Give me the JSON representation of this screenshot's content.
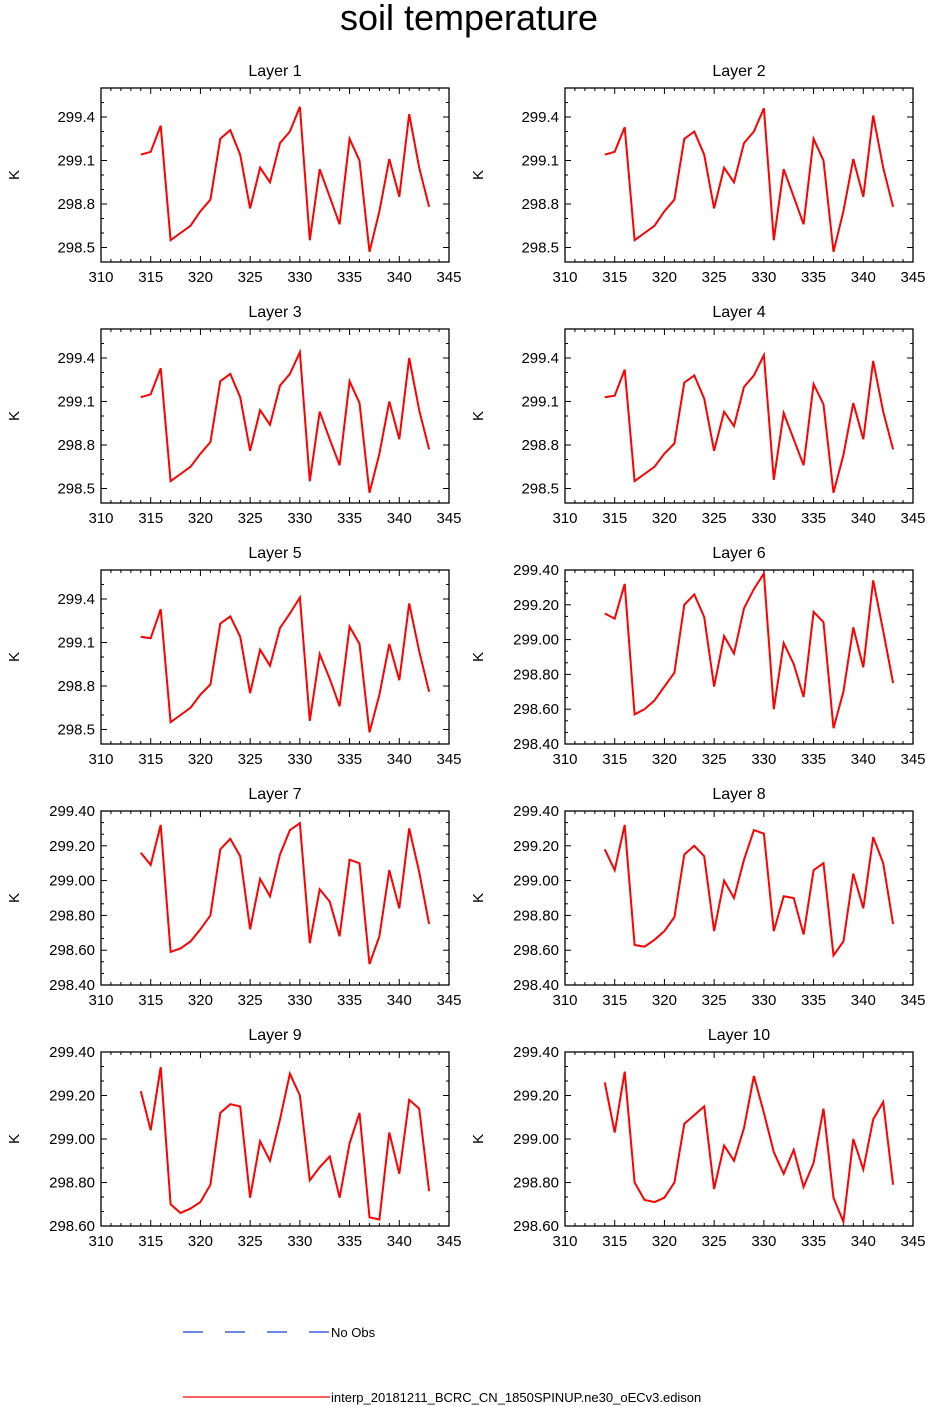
{
  "figure": {
    "title": "soil temperature"
  },
  "legend": {
    "entries": [
      {
        "label": "No Obs",
        "color": "#1a3fd6",
        "style": "dashed"
      },
      {
        "label": "interp_20181211_BCRC_CN_1850SPINUP.ne30_oECv3.edison",
        "color": "#ff0000",
        "style": "solid"
      }
    ]
  },
  "colors": {
    "series": "#ff0000",
    "axis": "#000000",
    "obs": "#1a3fd6"
  },
  "chart_data": [
    {
      "type": "line",
      "title": "Layer 1",
      "xlabel": "",
      "ylabel": "K",
      "xlim": [
        310,
        345
      ],
      "ylim": [
        298.4,
        299.6
      ],
      "xticks": [
        310,
        315,
        320,
        325,
        330,
        335,
        340,
        345
      ],
      "yticks": [
        298.5,
        298.8,
        299.1,
        299.4
      ],
      "ytick_labels": [
        "298.5",
        "298.8",
        "299.1",
        "299.4"
      ],
      "x": [
        314,
        315,
        316,
        317,
        318,
        319,
        320,
        321,
        322,
        323,
        324,
        325,
        326,
        327,
        328,
        329,
        330,
        331,
        332,
        333,
        334,
        335,
        336,
        337,
        338,
        339,
        340,
        341,
        342,
        343
      ],
      "series": [
        {
          "name": "interp_20181211_BCRC_CN_1850SPINUP.ne30_oECv3.edison",
          "values": [
            299.14,
            299.16,
            299.34,
            298.55,
            298.6,
            298.65,
            298.75,
            298.83,
            299.25,
            299.31,
            299.14,
            298.77,
            299.05,
            298.95,
            299.22,
            299.3,
            299.47,
            298.55,
            299.04,
            298.85,
            298.66,
            299.25,
            299.1,
            298.47,
            298.75,
            299.11,
            298.85,
            299.42,
            299.05,
            298.78
          ]
        }
      ]
    },
    {
      "type": "line",
      "title": "Layer 2",
      "xlabel": "",
      "ylabel": "K",
      "xlim": [
        310,
        345
      ],
      "ylim": [
        298.4,
        299.6
      ],
      "xticks": [
        310,
        315,
        320,
        325,
        330,
        335,
        340,
        345
      ],
      "yticks": [
        298.5,
        298.8,
        299.1,
        299.4
      ],
      "ytick_labels": [
        "298.5",
        "298.8",
        "299.1",
        "299.4"
      ],
      "x": [
        314,
        315,
        316,
        317,
        318,
        319,
        320,
        321,
        322,
        323,
        324,
        325,
        326,
        327,
        328,
        329,
        330,
        331,
        332,
        333,
        334,
        335,
        336,
        337,
        338,
        339,
        340,
        341,
        342,
        343
      ],
      "series": [
        {
          "name": "interp_20181211_BCRC_CN_1850SPINUP.ne30_oECv3.edison",
          "values": [
            299.14,
            299.16,
            299.33,
            298.55,
            298.6,
            298.65,
            298.75,
            298.83,
            299.25,
            299.3,
            299.14,
            298.77,
            299.05,
            298.95,
            299.22,
            299.3,
            299.46,
            298.55,
            299.04,
            298.85,
            298.66,
            299.25,
            299.1,
            298.47,
            298.75,
            299.11,
            298.85,
            299.41,
            299.05,
            298.78
          ]
        }
      ]
    },
    {
      "type": "line",
      "title": "Layer 3",
      "xlabel": "",
      "ylabel": "K",
      "xlim": [
        310,
        345
      ],
      "ylim": [
        298.4,
        299.6
      ],
      "xticks": [
        310,
        315,
        320,
        325,
        330,
        335,
        340,
        345
      ],
      "yticks": [
        298.5,
        298.8,
        299.1,
        299.4
      ],
      "ytick_labels": [
        "298.5",
        "298.8",
        "299.1",
        "299.4"
      ],
      "x": [
        314,
        315,
        316,
        317,
        318,
        319,
        320,
        321,
        322,
        323,
        324,
        325,
        326,
        327,
        328,
        329,
        330,
        331,
        332,
        333,
        334,
        335,
        336,
        337,
        338,
        339,
        340,
        341,
        342,
        343
      ],
      "series": [
        {
          "name": "interp_20181211_BCRC_CN_1850SPINUP.ne30_oECv3.edison",
          "values": [
            299.13,
            299.15,
            299.33,
            298.55,
            298.6,
            298.65,
            298.74,
            298.82,
            299.24,
            299.29,
            299.13,
            298.76,
            299.04,
            298.94,
            299.21,
            299.29,
            299.44,
            298.55,
            299.03,
            298.84,
            298.66,
            299.24,
            299.09,
            298.47,
            298.74,
            299.1,
            298.84,
            299.4,
            299.04,
            298.77
          ]
        }
      ]
    },
    {
      "type": "line",
      "title": "Layer 4",
      "xlabel": "",
      "ylabel": "K",
      "xlim": [
        310,
        345
      ],
      "ylim": [
        298.4,
        299.6
      ],
      "xticks": [
        310,
        315,
        320,
        325,
        330,
        335,
        340,
        345
      ],
      "yticks": [
        298.5,
        298.8,
        299.1,
        299.4
      ],
      "ytick_labels": [
        "298.5",
        "298.8",
        "299.1",
        "299.4"
      ],
      "x": [
        314,
        315,
        316,
        317,
        318,
        319,
        320,
        321,
        322,
        323,
        324,
        325,
        326,
        327,
        328,
        329,
        330,
        331,
        332,
        333,
        334,
        335,
        336,
        337,
        338,
        339,
        340,
        341,
        342,
        343
      ],
      "series": [
        {
          "name": "interp_20181211_BCRC_CN_1850SPINUP.ne30_oECv3.edison",
          "values": [
            299.13,
            299.14,
            299.32,
            298.55,
            298.6,
            298.65,
            298.74,
            298.81,
            299.23,
            299.28,
            299.12,
            298.76,
            299.03,
            298.93,
            299.2,
            299.28,
            299.42,
            298.56,
            299.02,
            298.84,
            298.66,
            299.22,
            299.08,
            298.47,
            298.73,
            299.09,
            298.84,
            299.38,
            299.03,
            298.77
          ]
        }
      ]
    },
    {
      "type": "line",
      "title": "Layer 5",
      "xlabel": "",
      "ylabel": "K",
      "xlim": [
        310,
        345
      ],
      "ylim": [
        298.4,
        299.6
      ],
      "xticks": [
        310,
        315,
        320,
        325,
        330,
        335,
        340,
        345
      ],
      "yticks": [
        298.5,
        298.8,
        299.1,
        299.4
      ],
      "ytick_labels": [
        "298.5",
        "298.8",
        "299.1",
        "299.4"
      ],
      "x": [
        314,
        315,
        316,
        317,
        318,
        319,
        320,
        321,
        322,
        323,
        324,
        325,
        326,
        327,
        328,
        329,
        330,
        331,
        332,
        333,
        334,
        335,
        336,
        337,
        338,
        339,
        340,
        341,
        342,
        343
      ],
      "series": [
        {
          "name": "interp_20181211_BCRC_CN_1850SPINUP.ne30_oECv3.edison",
          "values": [
            299.14,
            299.13,
            299.33,
            298.55,
            298.6,
            298.65,
            298.74,
            298.81,
            299.23,
            299.28,
            299.14,
            298.75,
            299.05,
            298.94,
            299.2,
            299.3,
            299.41,
            298.56,
            299.02,
            298.85,
            298.66,
            299.21,
            299.09,
            298.48,
            298.74,
            299.09,
            298.84,
            299.37,
            299.04,
            298.76
          ]
        }
      ]
    },
    {
      "type": "line",
      "title": "Layer 6",
      "xlabel": "",
      "ylabel": "K",
      "xlim": [
        310,
        345
      ],
      "ylim": [
        298.4,
        299.4
      ],
      "xticks": [
        310,
        315,
        320,
        325,
        330,
        335,
        340,
        345
      ],
      "yticks": [
        298.4,
        298.6,
        298.8,
        299.0,
        299.2,
        299.4
      ],
      "ytick_labels": [
        "298.40",
        "298.60",
        "298.80",
        "299.00",
        "299.20",
        "299.40"
      ],
      "x": [
        314,
        315,
        316,
        317,
        318,
        319,
        320,
        321,
        322,
        323,
        324,
        325,
        326,
        327,
        328,
        329,
        330,
        331,
        332,
        333,
        334,
        335,
        336,
        337,
        338,
        339,
        340,
        341,
        342,
        343
      ],
      "series": [
        {
          "name": "interp_20181211_BCRC_CN_1850SPINUP.ne30_oECv3.edison",
          "values": [
            299.15,
            299.12,
            299.32,
            298.57,
            298.6,
            298.65,
            298.73,
            298.81,
            299.2,
            299.26,
            299.13,
            298.73,
            299.02,
            298.92,
            299.18,
            299.29,
            299.38,
            298.6,
            298.98,
            298.86,
            298.67,
            299.16,
            299.1,
            298.49,
            298.7,
            299.07,
            298.84,
            299.34,
            299.05,
            298.75
          ]
        }
      ]
    },
    {
      "type": "line",
      "title": "Layer 7",
      "xlabel": "",
      "ylabel": "K",
      "xlim": [
        310,
        345
      ],
      "ylim": [
        298.4,
        299.4
      ],
      "xticks": [
        310,
        315,
        320,
        325,
        330,
        335,
        340,
        345
      ],
      "yticks": [
        298.4,
        298.6,
        298.8,
        299.0,
        299.2,
        299.4
      ],
      "ytick_labels": [
        "298.40",
        "298.60",
        "298.80",
        "299.00",
        "299.20",
        "299.40"
      ],
      "x": [
        314,
        315,
        316,
        317,
        318,
        319,
        320,
        321,
        322,
        323,
        324,
        325,
        326,
        327,
        328,
        329,
        330,
        331,
        332,
        333,
        334,
        335,
        336,
        337,
        338,
        339,
        340,
        341,
        342,
        343
      ],
      "series": [
        {
          "name": "interp_20181211_BCRC_CN_1850SPINUP.ne30_oECv3.edison",
          "values": [
            299.16,
            299.09,
            299.32,
            298.59,
            298.61,
            298.65,
            298.72,
            298.8,
            299.18,
            299.24,
            299.14,
            298.72,
            299.01,
            298.91,
            299.15,
            299.29,
            299.33,
            298.64,
            298.95,
            298.88,
            298.68,
            299.12,
            299.1,
            298.52,
            298.68,
            299.06,
            298.84,
            299.3,
            299.05,
            298.75
          ]
        }
      ]
    },
    {
      "type": "line",
      "title": "Layer 8",
      "xlabel": "",
      "ylabel": "K",
      "xlim": [
        310,
        345
      ],
      "ylim": [
        298.4,
        299.4
      ],
      "xticks": [
        310,
        315,
        320,
        325,
        330,
        335,
        340,
        345
      ],
      "yticks": [
        298.4,
        298.6,
        298.8,
        299.0,
        299.2,
        299.4
      ],
      "ytick_labels": [
        "298.40",
        "298.60",
        "298.80",
        "299.00",
        "299.20",
        "299.40"
      ],
      "x": [
        314,
        315,
        316,
        317,
        318,
        319,
        320,
        321,
        322,
        323,
        324,
        325,
        326,
        327,
        328,
        329,
        330,
        331,
        332,
        333,
        334,
        335,
        336,
        337,
        338,
        339,
        340,
        341,
        342,
        343
      ],
      "series": [
        {
          "name": "interp_20181211_BCRC_CN_1850SPINUP.ne30_oECv3.edison",
          "values": [
            299.18,
            299.06,
            299.32,
            298.63,
            298.62,
            298.66,
            298.71,
            298.79,
            299.15,
            299.2,
            299.14,
            298.71,
            299.0,
            298.9,
            299.12,
            299.29,
            299.27,
            298.71,
            298.91,
            298.9,
            298.69,
            299.06,
            299.1,
            298.57,
            298.65,
            299.04,
            298.84,
            299.25,
            299.1,
            298.75
          ]
        }
      ]
    },
    {
      "type": "line",
      "title": "Layer 9",
      "xlabel": "",
      "ylabel": "K",
      "xlim": [
        310,
        345
      ],
      "ylim": [
        298.6,
        299.4
      ],
      "xticks": [
        310,
        315,
        320,
        325,
        330,
        335,
        340,
        345
      ],
      "yticks": [
        298.6,
        298.8,
        299.0,
        299.2,
        299.4
      ],
      "ytick_labels": [
        "298.60",
        "298.80",
        "299.00",
        "299.20",
        "299.40"
      ],
      "x": [
        314,
        315,
        316,
        317,
        318,
        319,
        320,
        321,
        322,
        323,
        324,
        325,
        326,
        327,
        328,
        329,
        330,
        331,
        332,
        333,
        334,
        335,
        336,
        337,
        338,
        339,
        340,
        341,
        342,
        343
      ],
      "series": [
        {
          "name": "interp_20181211_BCRC_CN_1850SPINUP.ne30_oECv3.edison",
          "values": [
            299.22,
            299.04,
            299.33,
            298.7,
            298.66,
            298.68,
            298.71,
            298.79,
            299.12,
            299.16,
            299.15,
            298.73,
            298.99,
            298.9,
            299.09,
            299.3,
            299.2,
            298.81,
            298.87,
            298.92,
            298.73,
            298.98,
            299.12,
            298.64,
            298.63,
            299.03,
            298.84,
            299.18,
            299.14,
            298.76
          ]
        }
      ]
    },
    {
      "type": "line",
      "title": "Layer 10",
      "xlabel": "",
      "ylabel": "K",
      "xlim": [
        310,
        345
      ],
      "ylim": [
        298.6,
        299.4
      ],
      "xticks": [
        310,
        315,
        320,
        325,
        330,
        335,
        340,
        345
      ],
      "yticks": [
        298.6,
        298.8,
        299.0,
        299.2,
        299.4
      ],
      "ytick_labels": [
        "298.60",
        "298.80",
        "299.00",
        "299.20",
        "299.40"
      ],
      "x": [
        314,
        315,
        316,
        317,
        318,
        319,
        320,
        321,
        322,
        323,
        324,
        325,
        326,
        327,
        328,
        329,
        330,
        331,
        332,
        333,
        334,
        335,
        336,
        337,
        338,
        339,
        340,
        341,
        342,
        343
      ],
      "series": [
        {
          "name": "interp_20181211_BCRC_CN_1850SPINUP.ne30_oECv3.edison",
          "values": [
            299.26,
            299.03,
            299.31,
            298.8,
            298.72,
            298.71,
            298.73,
            298.8,
            299.07,
            299.11,
            299.15,
            298.77,
            298.97,
            298.9,
            299.05,
            299.29,
            299.12,
            298.94,
            298.84,
            298.95,
            298.78,
            298.89,
            299.14,
            298.73,
            298.62,
            299.0,
            298.86,
            299.09,
            299.17,
            298.79
          ]
        }
      ]
    }
  ]
}
